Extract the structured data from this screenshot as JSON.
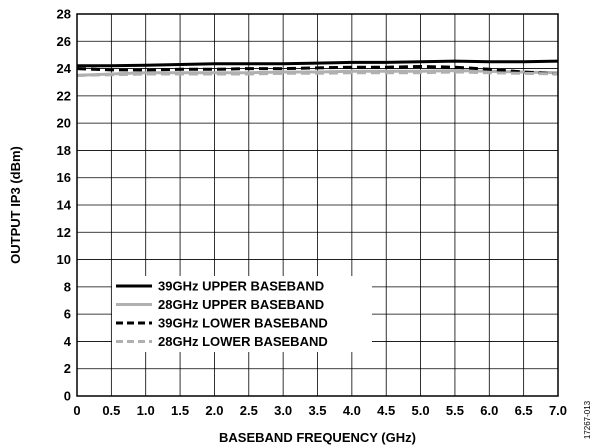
{
  "figure_id": "17267-013",
  "chart_data": {
    "type": "line",
    "xlabel": "BASEBAND FREQUENCY (GHz)",
    "ylabel": "OUTPUT IP3 (dBm)",
    "xlim": [
      0,
      7.0
    ],
    "ylim": [
      0,
      28
    ],
    "xticks": [
      "0",
      "0.5",
      "1.0",
      "1.5",
      "2.0",
      "2.5",
      "3.0",
      "3.5",
      "4.0",
      "4.5",
      "5.0",
      "5.5",
      "6.0",
      "6.5",
      "7.0"
    ],
    "xtick_values": [
      0,
      0.5,
      1.0,
      1.5,
      2.0,
      2.5,
      3.0,
      3.5,
      4.0,
      4.5,
      5.0,
      5.5,
      6.0,
      6.5,
      7.0
    ],
    "yticks": [
      "0",
      "2",
      "4",
      "6",
      "8",
      "10",
      "12",
      "14",
      "16",
      "18",
      "20",
      "22",
      "24",
      "26",
      "28"
    ],
    "ytick_values": [
      0,
      2,
      4,
      6,
      8,
      10,
      12,
      14,
      16,
      18,
      20,
      22,
      24,
      26,
      28
    ],
    "grid": true,
    "legend_position": "lower-left",
    "series": [
      {
        "name": "39GHz UPPER BASEBAND",
        "color": "#000000",
        "dash": "solid",
        "x": [
          0,
          0.5,
          1.0,
          1.5,
          2.0,
          2.5,
          3.0,
          3.5,
          4.0,
          4.5,
          5.0,
          5.5,
          6.0,
          6.5,
          7.0
        ],
        "y": [
          24.2,
          24.2,
          24.25,
          24.3,
          24.35,
          24.35,
          24.35,
          24.4,
          24.45,
          24.45,
          24.5,
          24.55,
          24.5,
          24.5,
          24.55
        ]
      },
      {
        "name": "28GHz UPPER BASEBAND",
        "color": "#b0b0b0",
        "dash": "solid",
        "x": [
          0,
          0.5,
          1.0,
          1.5,
          2.0,
          2.5,
          3.0,
          3.5,
          4.0,
          4.5,
          5.0,
          5.5,
          6.0,
          6.5,
          7.0
        ],
        "y": [
          23.5,
          23.6,
          23.7,
          23.7,
          23.7,
          23.7,
          23.75,
          23.75,
          23.8,
          23.8,
          23.8,
          23.85,
          23.8,
          23.75,
          23.7
        ]
      },
      {
        "name": "39GHz LOWER BASEBAND",
        "color": "#000000",
        "dash": "dashed",
        "x": [
          0,
          0.5,
          1.0,
          1.5,
          2.0,
          2.5,
          3.0,
          3.5,
          4.0,
          4.5,
          5.0,
          5.5,
          6.0,
          6.5,
          7.0
        ],
        "y": [
          24.0,
          23.9,
          23.9,
          23.95,
          23.95,
          24.0,
          24.0,
          24.05,
          24.1,
          24.1,
          24.15,
          24.1,
          23.95,
          23.75,
          23.6
        ]
      },
      {
        "name": "28GHz LOWER BASEBAND",
        "color": "#b0b0b0",
        "dash": "dashed",
        "x": [
          0,
          0.5,
          1.0,
          1.5,
          2.0,
          2.5,
          3.0,
          3.5,
          4.0,
          4.5,
          5.0,
          5.5,
          6.0,
          6.5,
          7.0
        ],
        "y": [
          23.5,
          23.55,
          23.6,
          23.6,
          23.6,
          23.6,
          23.65,
          23.65,
          23.7,
          23.7,
          23.7,
          23.75,
          23.7,
          23.65,
          23.6
        ]
      }
    ]
  }
}
